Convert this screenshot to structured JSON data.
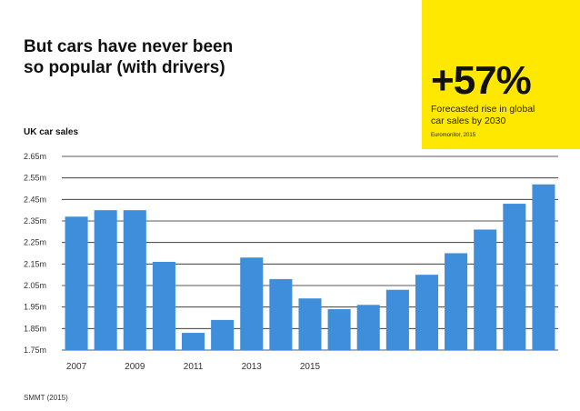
{
  "headline": {
    "line1": "But cars have never been",
    "line2": "so popular (with drivers)"
  },
  "callout": {
    "big_number": "+57%",
    "line1": "Forecasted rise in global",
    "line2": "car sales by 2030",
    "source": "Euromonitor, 2015",
    "bg_color": "#ffe800"
  },
  "chart_data": {
    "type": "bar",
    "title": "UK car sales",
    "xlabel": "",
    "ylabel": "",
    "y_tick_labels": [
      "1.75m",
      "1.85m",
      "1.95m",
      "2.05m",
      "2.15m",
      "2.25m",
      "2.35m",
      "2.45m",
      "2.55m",
      "2.65m"
    ],
    "x_tick_labels": [
      "2007",
      "2009",
      "2011",
      "2013",
      "2015"
    ],
    "ylim": [
      1.75,
      2.65
    ],
    "grid": true,
    "bar_color": "#3e8edb",
    "values": [
      2.37,
      2.4,
      2.4,
      2.16,
      1.83,
      1.89,
      2.18,
      2.08,
      1.99,
      1.94,
      1.96,
      2.03,
      2.1,
      2.2,
      2.31,
      2.43,
      2.52
    ]
  },
  "source": "SMMT (2015)"
}
